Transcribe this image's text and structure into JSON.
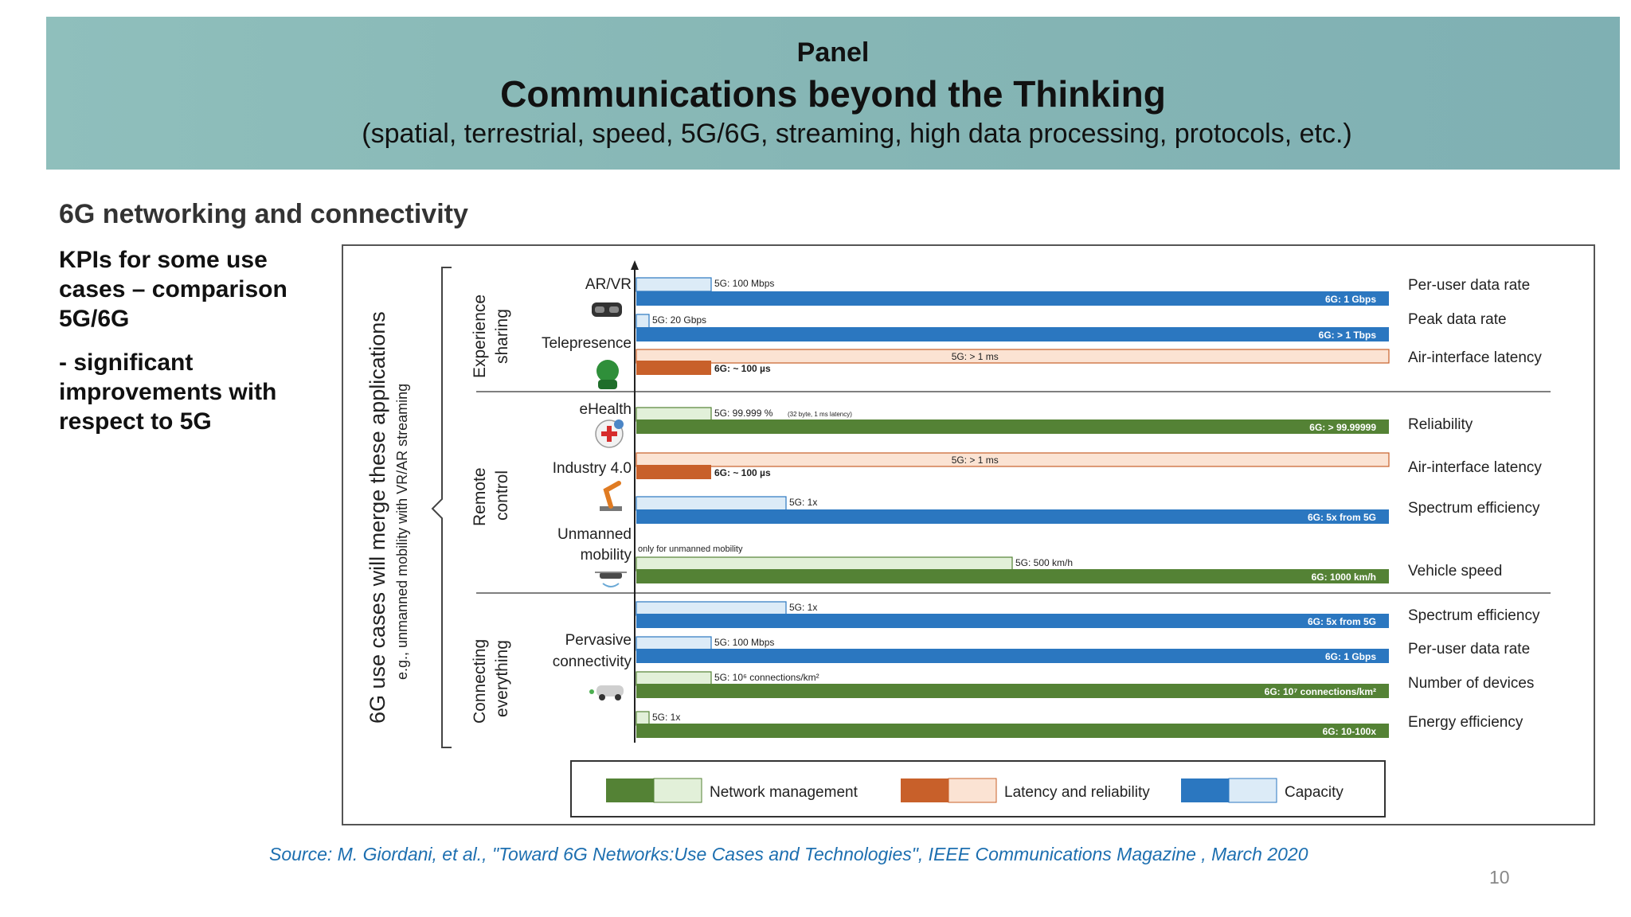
{
  "header": {
    "label": "Panel",
    "title": "Communications beyond the Thinking",
    "subtitle": "(spatial, terrestrial, speed, 5G/6G, streaming, high data processing, protocols, etc.)"
  },
  "section_heading": "6G networking and connectivity",
  "kpi_text": [
    "KPIs for some use cases – comparison 5G/6G",
    "- significant improvements with respect to 5G"
  ],
  "figure": {
    "left_title": "6G use cases will merge these applications",
    "left_subtitle": "e.g., unmanned mobility with VR/AR streaming",
    "groups": [
      {
        "line1": "Experience",
        "line2": "sharing"
      },
      {
        "line1": "Remote",
        "line2": "control"
      },
      {
        "line1": "Connecting",
        "line2": "everything"
      }
    ],
    "use_cases": [
      "AR/VR",
      "Telepresence",
      "eHealth",
      "Industry 4.0",
      "Unmanned",
      "mobility",
      "Pervasive",
      "connectivity"
    ],
    "note": "only for unmanned mobility",
    "legend": [
      "Network management",
      "Latency and reliability",
      "Capacity"
    ],
    "colors": {
      "capacity": "#2b77c0",
      "capacity_light": "#dcebf7",
      "latency": "#c8602a",
      "latency_light": "#fbe3d3",
      "network": "#548235",
      "network_light": "#e2f0d9"
    }
  },
  "chart_data": {
    "type": "bar",
    "title": "",
    "rows": [
      {
        "category": "capacity",
        "kpi": "Per-user data rate",
        "label_5g": "5G: 100 Mbps",
        "label_6g": "6G: 1 Gbps"
      },
      {
        "category": "capacity",
        "kpi": "Peak data rate",
        "label_5g": "5G: 20 Gbps",
        "label_6g": "6G: > 1 Tbps"
      },
      {
        "category": "latency",
        "kpi": "Air-interface latency",
        "label_5g": "5G: > 1 ms",
        "label_6g": "6G: ~ 100 µs"
      },
      {
        "category": "network",
        "kpi": "Reliability",
        "label_5g": "5G: 99.999 %",
        "label_5g_note": "(32 byte, 1 ms latency)",
        "label_6g": "6G: > 99.99999"
      },
      {
        "category": "latency",
        "kpi": "Air-interface latency",
        "label_5g": "5G: > 1 ms",
        "label_6g": "6G: ~ 100 µs"
      },
      {
        "category": "capacity",
        "kpi": "Spectrum efficiency",
        "label_5g": "5G: 1x",
        "label_6g": "6G: 5x from 5G"
      },
      {
        "category": "network",
        "kpi": "Vehicle speed",
        "label_5g": "5G: 500 km/h",
        "label_6g": "6G: 1000 km/h"
      },
      {
        "category": "capacity",
        "kpi": "Spectrum efficiency",
        "label_5g": "5G: 1x",
        "label_6g": "6G: 5x from 5G"
      },
      {
        "category": "capacity",
        "kpi": "Per-user data rate",
        "label_5g": "5G: 100 Mbps",
        "label_6g": "6G: 1 Gbps"
      },
      {
        "category": "network",
        "kpi": "Number of devices",
        "label_5g": "5G: 10⁶ connections/km²",
        "label_6g": "6G: 10⁷ connections/km²"
      },
      {
        "category": "network",
        "kpi": "Energy efficiency",
        "label_5g": "5G: 1x",
        "label_6g": "6G: 10-100x"
      }
    ]
  },
  "source": "Source: M. Giordani, et al., \"Toward 6G Networks:Use Cases and Technologies\", IEEE Communications Magazine ,  March 2020",
  "page_number": "10"
}
